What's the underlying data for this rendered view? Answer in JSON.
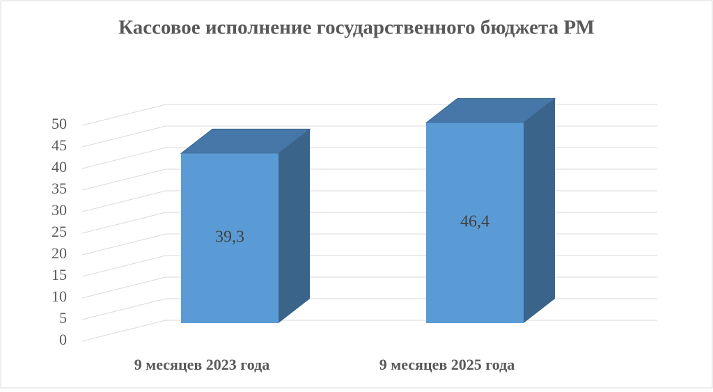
{
  "chart_data": {
    "type": "bar3d",
    "title": "Кассовое исполнение государственного бюджета РМ",
    "categories": [
      "9 месяцев 2023 года",
      "9 месяцев 2025 года"
    ],
    "values": [
      39.3,
      46.4
    ],
    "value_labels": [
      "39,3",
      "46,4"
    ],
    "color": "#5b9bd5",
    "ylim": [
      0,
      50
    ],
    "yticks": [
      0,
      5,
      10,
      15,
      20,
      25,
      30,
      35,
      40,
      45,
      50
    ],
    "grid": true
  }
}
